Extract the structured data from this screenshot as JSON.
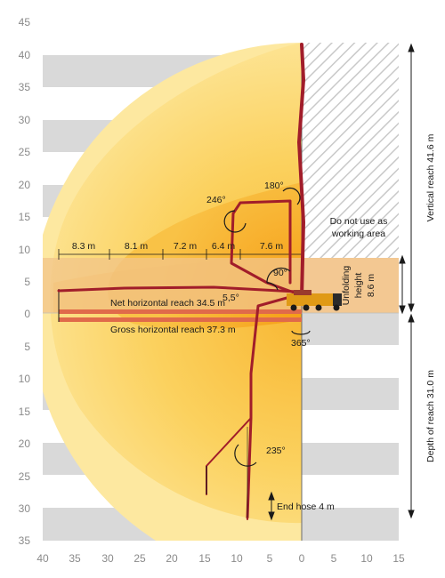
{
  "axes": {
    "x_ticks": [
      "40",
      "35",
      "30",
      "25",
      "20",
      "15",
      "10",
      "5",
      "0",
      "5",
      "10",
      "15"
    ],
    "y_ticks_up": [
      "45",
      "40",
      "35",
      "30",
      "25",
      "20",
      "15",
      "10",
      "5",
      "0"
    ],
    "y_ticks_down": [
      "5",
      "10",
      "15",
      "20",
      "25",
      "30",
      "35"
    ]
  },
  "labels": {
    "segments": [
      "8.3 m",
      "8.1 m",
      "7.2 m",
      "6.4 m",
      "7.6 m"
    ],
    "net_reach": "Net horizontal reach 34.5 m",
    "gross_reach": "Gross horizontal reach 37.3 m",
    "no_use_line1": "Do not use as",
    "no_use_line2": "working area",
    "unfolding_line1": "Unfolding",
    "unfolding_line2": "height",
    "unfolding_line3": "8.6 m",
    "vertical_reach": "Vertical reach 41.6 m",
    "depth_reach": "Depth of reach 31.0 m",
    "end_hose": "End hose 4 m",
    "angle_246": "246°",
    "angle_180": "180°",
    "angle_90": "90°",
    "angle_55": "5,5°",
    "angle_365": "365°",
    "angle_235": "235°"
  },
  "colors": {
    "boom": "#a11d2a",
    "reach_bar": "#e06a4a",
    "zone_light": "#fde9a0",
    "zone_mid": "#fbd169",
    "zone_hot": "#f7a31b",
    "unfolding_band": "#f1c48a",
    "stripe": "#d6d6d6"
  }
}
